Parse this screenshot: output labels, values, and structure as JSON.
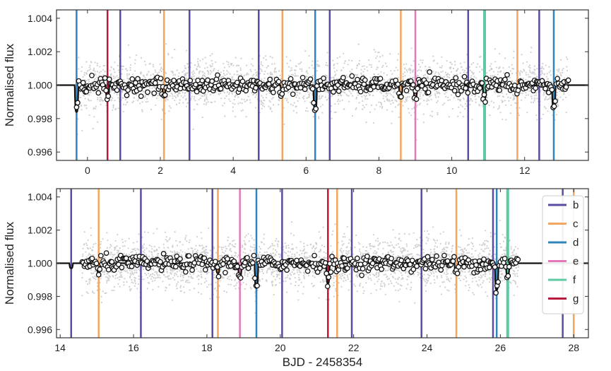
{
  "chart_data": [
    {
      "type": "scatter",
      "panel": "top",
      "xlabel": "",
      "ylabel": "Normalised flux",
      "xlim": [
        -0.85,
        13.75
      ],
      "ylim": [
        0.9955,
        1.0045
      ],
      "x_ticks": [
        0,
        2,
        4,
        6,
        8,
        10,
        12
      ],
      "x_tick_labels": [
        "0",
        "2",
        "4",
        "6",
        "8",
        "10",
        "12"
      ],
      "y_ticks": [
        0.996,
        0.998,
        1.0,
        1.002,
        1.004
      ],
      "y_tick_labels": [
        "0.996",
        "0.998",
        "1.000",
        "1.002",
        "1.004"
      ],
      "data_range": [
        -0.3,
        13.2
      ],
      "transit_markers": {
        "b": [
          0.9,
          2.8,
          4.7,
          6.65,
          10.45,
          12.4
        ],
        "c": [
          2.1,
          5.35,
          8.6,
          11.8
        ],
        "d": [
          -0.3,
          6.25,
          12.8
        ],
        "e": [
          9.0
        ],
        "f": [
          10.9
        ],
        "g": [
          0.55
        ]
      },
      "transit_depths": [
        {
          "x": -0.3,
          "depth": 0.0016
        },
        {
          "x": 0.55,
          "depth": 0.0008
        },
        {
          "x": 2.1,
          "depth": 0.0005
        },
        {
          "x": 5.35,
          "depth": 0.0005
        },
        {
          "x": 6.25,
          "depth": 0.0015
        },
        {
          "x": 8.6,
          "depth": 0.0006
        },
        {
          "x": 9.0,
          "depth": 0.0008
        },
        {
          "x": 10.9,
          "depth": 0.0008
        },
        {
          "x": 11.8,
          "depth": 0.0005
        },
        {
          "x": 12.8,
          "depth": 0.0014
        }
      ]
    },
    {
      "type": "scatter",
      "panel": "bottom",
      "xlabel": "BJD - 2458354",
      "ylabel": "Normalised flux",
      "xlim": [
        13.9,
        28.4
      ],
      "ylim": [
        0.9955,
        1.0045
      ],
      "x_ticks": [
        14,
        16,
        18,
        20,
        22,
        24,
        26,
        28
      ],
      "x_tick_labels": [
        "14",
        "16",
        "18",
        "20",
        "22",
        "24",
        "26",
        "28"
      ],
      "y_ticks": [
        0.996,
        0.998,
        1.0,
        1.002,
        1.004
      ],
      "y_tick_labels": [
        "0.996",
        "0.998",
        "1.000",
        "1.002",
        "1.004"
      ],
      "data_range": [
        14.6,
        26.5
      ],
      "transit_markers": {
        "b": [
          14.3,
          16.2,
          18.15,
          20.05,
          21.95,
          23.85,
          25.8,
          27.7
        ],
        "c": [
          15.05,
          18.3,
          21.55,
          24.8,
          28.0
        ],
        "d": [
          19.35,
          25.9
        ],
        "e": [
          18.9
        ],
        "f": [
          26.2
        ],
        "g": [
          21.3
        ]
      },
      "transit_depths": [
        {
          "x": 14.3,
          "depth": 0.0003
        },
        {
          "x": 15.05,
          "depth": 0.0006
        },
        {
          "x": 18.3,
          "depth": 0.0006
        },
        {
          "x": 18.9,
          "depth": 0.0008
        },
        {
          "x": 19.35,
          "depth": 0.0015
        },
        {
          "x": 21.3,
          "depth": 0.0012
        },
        {
          "x": 21.55,
          "depth": 0.0005
        },
        {
          "x": 24.8,
          "depth": 0.0005
        },
        {
          "x": 25.9,
          "depth": 0.0016
        },
        {
          "x": 26.2,
          "depth": 0.0007
        }
      ]
    }
  ],
  "legend": {
    "placement": "right",
    "entries": [
      {
        "label": "b",
        "color": "#5b4ba3"
      },
      {
        "label": "c",
        "color": "#f4a65e"
      },
      {
        "label": "d",
        "color": "#2f86bd"
      },
      {
        "label": "e",
        "color": "#e377b7"
      },
      {
        "label": "f",
        "color": "#5fcaa1"
      },
      {
        "label": "g",
        "color": "#b8193c"
      }
    ]
  },
  "colors": {
    "raw_points": "#cfcfcf",
    "binned_points_edge": "#111111",
    "model_line": "#111111",
    "axes": "#333333"
  }
}
